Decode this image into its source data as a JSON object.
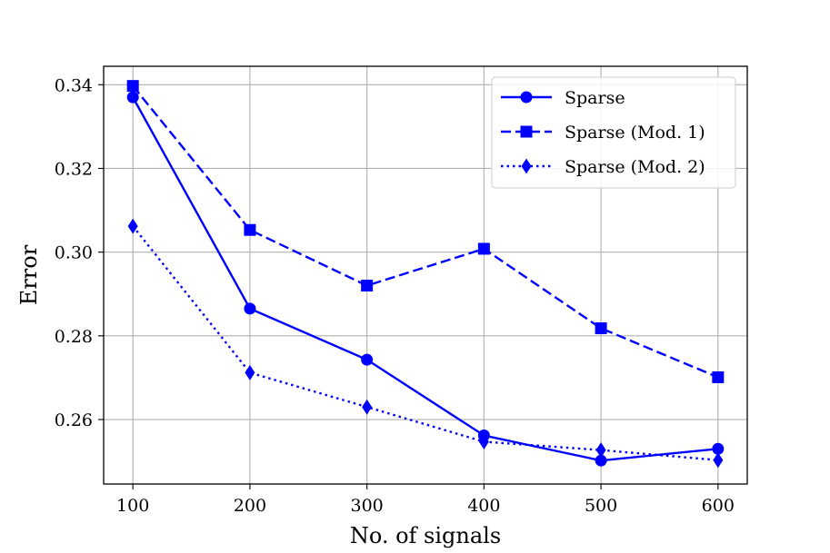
{
  "chart_data": {
    "type": "line",
    "title": "",
    "xlabel": "No. of signals",
    "ylabel": "Error",
    "x": [
      100,
      200,
      300,
      400,
      500,
      600
    ],
    "xlim": [
      75,
      625
    ],
    "ylim": [
      0.2446,
      0.3444
    ],
    "xticks": [
      "100",
      "200",
      "300",
      "400",
      "500",
      "600"
    ],
    "yticks": [
      "0.26",
      "0.28",
      "0.30",
      "0.32",
      "0.34"
    ],
    "grid": true,
    "legend_position": "top-right",
    "series": [
      {
        "name": "Sparse",
        "color": "#0000ff",
        "linestyle": "solid",
        "marker": "circle",
        "values": [
          0.337,
          0.2865,
          0.2743,
          0.2562,
          0.2502,
          0.253
        ]
      },
      {
        "name": "Sparse (Mod. 1)",
        "color": "#0000ff",
        "linestyle": "dashed",
        "marker": "square",
        "values": [
          0.3397,
          0.3053,
          0.292,
          0.3008,
          0.2818,
          0.2701
        ]
      },
      {
        "name": "Sparse (Mod. 2)",
        "color": "#0000ff",
        "linestyle": "dotted",
        "marker": "thin-diamond",
        "values": [
          0.3062,
          0.2712,
          0.263,
          0.2547,
          0.2527,
          0.2503
        ]
      }
    ]
  }
}
